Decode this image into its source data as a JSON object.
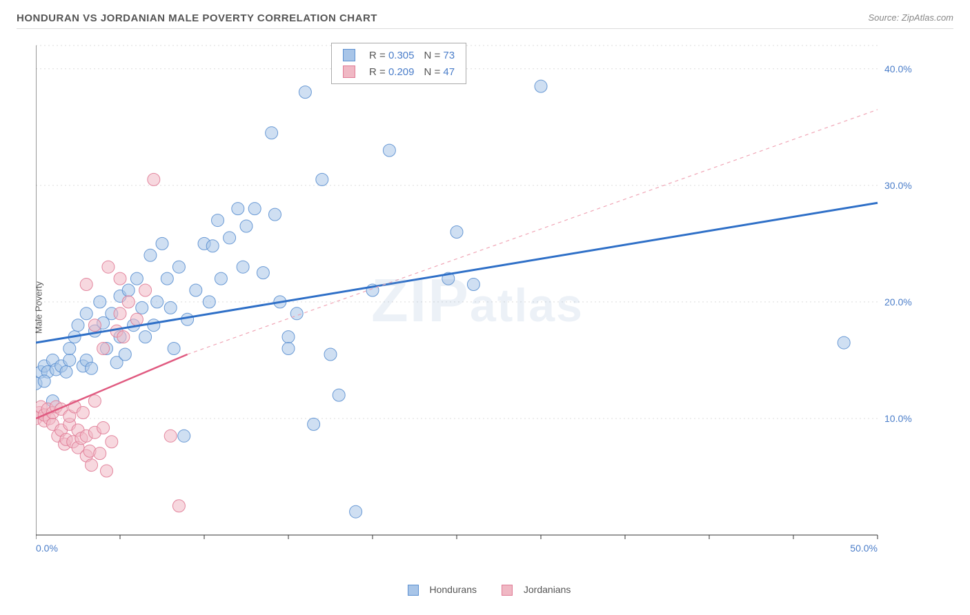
{
  "title": "HONDURAN VS JORDANIAN MALE POVERTY CORRELATION CHART",
  "source": "Source: ZipAtlas.com",
  "ylabel": "Male Poverty",
  "watermark": "ZIPatlas",
  "chart": {
    "type": "scatter",
    "xlim": [
      0,
      50
    ],
    "ylim": [
      0,
      42
    ],
    "xticks": [
      0,
      5,
      10,
      15,
      20,
      25,
      30,
      35,
      40,
      45,
      50
    ],
    "yticks": [
      10,
      20,
      30,
      40
    ],
    "xtick_labels": [
      "0.0%",
      "",
      "",
      "",
      "",
      "",
      "",
      "",
      "",
      "",
      "50.0%"
    ],
    "ytick_labels": [
      "10.0%",
      "20.0%",
      "30.0%",
      "40.0%"
    ],
    "grid_ylevels": [
      10,
      20,
      30,
      40,
      42
    ],
    "plot_bg": "#ffffff",
    "grid_color": "#dcdcdc",
    "axis_color": "#333333",
    "tick_label_color": "#4a7dc9",
    "marker_radius": 9,
    "marker_opacity": 0.55,
    "series": [
      {
        "name": "Hondurans",
        "color_fill": "#a8c5e8",
        "color_stroke": "#5a8fd0",
        "R": "0.305",
        "N": "73",
        "trend": {
          "x0": 0,
          "y0": 16.5,
          "x1": 50,
          "y1": 28.5,
          "stroke": "#2e6fc7",
          "width": 3,
          "dash": ""
        },
        "trend_ext": null,
        "points": [
          [
            0,
            13
          ],
          [
            0.3,
            14
          ],
          [
            0.5,
            14.5
          ],
          [
            0.7,
            14
          ],
          [
            0.5,
            13.2
          ],
          [
            1,
            11.5
          ],
          [
            1,
            15
          ],
          [
            1.2,
            14.2
          ],
          [
            1.5,
            14.5
          ],
          [
            1.8,
            14
          ],
          [
            2,
            15
          ],
          [
            2,
            16
          ],
          [
            2.3,
            17
          ],
          [
            2.5,
            18
          ],
          [
            2.8,
            14.5
          ],
          [
            3,
            15
          ],
          [
            3,
            19
          ],
          [
            3.3,
            14.3
          ],
          [
            3.5,
            17.5
          ],
          [
            3.8,
            20
          ],
          [
            4,
            18.2
          ],
          [
            4.2,
            16
          ],
          [
            4.5,
            19
          ],
          [
            4.8,
            14.8
          ],
          [
            5,
            20.5
          ],
          [
            5,
            17
          ],
          [
            5.3,
            15.5
          ],
          [
            5.5,
            21
          ],
          [
            5.8,
            18
          ],
          [
            6,
            22
          ],
          [
            6.3,
            19.5
          ],
          [
            6.5,
            17
          ],
          [
            6.8,
            24
          ],
          [
            7,
            18
          ],
          [
            7.2,
            20
          ],
          [
            7.5,
            25
          ],
          [
            7.8,
            22
          ],
          [
            8,
            19.5
          ],
          [
            8.2,
            16
          ],
          [
            8.5,
            23
          ],
          [
            8.8,
            8.5
          ],
          [
            9,
            18.5
          ],
          [
            9.5,
            21
          ],
          [
            10,
            25
          ],
          [
            10.3,
            20
          ],
          [
            10.5,
            24.8
          ],
          [
            10.8,
            27
          ],
          [
            11,
            22
          ],
          [
            11.5,
            25.5
          ],
          [
            12,
            28
          ],
          [
            12.3,
            23
          ],
          [
            12.5,
            26.5
          ],
          [
            13,
            28
          ],
          [
            13.5,
            22.5
          ],
          [
            14,
            34.5
          ],
          [
            14.2,
            27.5
          ],
          [
            14.5,
            20
          ],
          [
            15,
            17
          ],
          [
            15,
            16
          ],
          [
            15.5,
            19
          ],
          [
            16,
            38
          ],
          [
            16.5,
            9.5
          ],
          [
            17,
            30.5
          ],
          [
            17.5,
            15.5
          ],
          [
            18,
            12
          ],
          [
            19,
            2
          ],
          [
            20,
            21
          ],
          [
            21,
            33
          ],
          [
            24.5,
            22
          ],
          [
            25,
            26
          ],
          [
            26,
            21.5
          ],
          [
            30,
            38.5
          ],
          [
            48,
            16.5
          ]
        ]
      },
      {
        "name": "Jordanians",
        "color_fill": "#f0b8c4",
        "color_stroke": "#e07a95",
        "R": "0.209",
        "N": "47",
        "trend": {
          "x0": 0,
          "y0": 10,
          "x1": 9,
          "y1": 15.5,
          "stroke": "#e05a80",
          "width": 2.5,
          "dash": ""
        },
        "trend_ext": {
          "x0": 9,
          "y0": 15.5,
          "x1": 50,
          "y1": 36.5,
          "stroke": "#f0a5b5",
          "width": 1.2,
          "dash": "5,5"
        },
        "points": [
          [
            0,
            10
          ],
          [
            0.2,
            10.5
          ],
          [
            0.3,
            11
          ],
          [
            0.5,
            9.8
          ],
          [
            0.5,
            10.3
          ],
          [
            0.7,
            10.8
          ],
          [
            0.8,
            10
          ],
          [
            1,
            9.5
          ],
          [
            1,
            10.5
          ],
          [
            1.2,
            11
          ],
          [
            1.3,
            8.5
          ],
          [
            1.5,
            9
          ],
          [
            1.5,
            10.8
          ],
          [
            1.7,
            7.8
          ],
          [
            1.8,
            8.2
          ],
          [
            2,
            9.5
          ],
          [
            2,
            10.2
          ],
          [
            2.2,
            8
          ],
          [
            2.3,
            11
          ],
          [
            2.5,
            7.5
          ],
          [
            2.5,
            9
          ],
          [
            2.7,
            8.3
          ],
          [
            2.8,
            10.5
          ],
          [
            3,
            6.8
          ],
          [
            3,
            8.5
          ],
          [
            3.2,
            7.2
          ],
          [
            3.3,
            6
          ],
          [
            3.5,
            8.8
          ],
          [
            3.5,
            11.5
          ],
          [
            3.8,
            7
          ],
          [
            4,
            9.2
          ],
          [
            4,
            16
          ],
          [
            4.2,
            5.5
          ],
          [
            4.5,
            8
          ],
          [
            4.8,
            17.5
          ],
          [
            5,
            19
          ],
          [
            5.2,
            17
          ],
          [
            5.5,
            20
          ],
          [
            6,
            18.5
          ],
          [
            6.5,
            21
          ],
          [
            4.3,
            23
          ],
          [
            5,
            22
          ],
          [
            3,
            21.5
          ],
          [
            3.5,
            18
          ],
          [
            7,
            30.5
          ],
          [
            8,
            8.5
          ],
          [
            8.5,
            2.5
          ]
        ]
      }
    ],
    "legend_bottom": [
      {
        "label": "Hondurans",
        "fill": "#a8c5e8",
        "stroke": "#5a8fd0"
      },
      {
        "label": "Jordanians",
        "fill": "#f0b8c4",
        "stroke": "#e07a95"
      }
    ]
  }
}
